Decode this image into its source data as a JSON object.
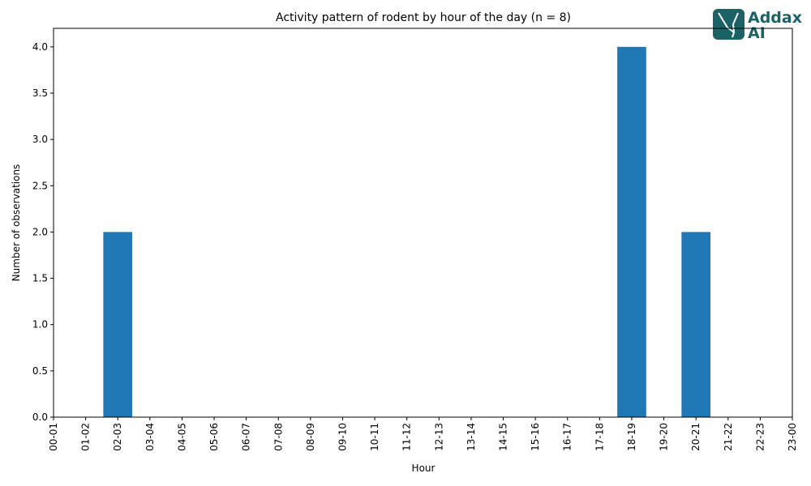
{
  "logo": {
    "line1": "Addax",
    "line2": "AI"
  },
  "chart_data": {
    "type": "bar",
    "title": "Activity pattern of rodent by hour of the day (n = 8)",
    "xlabel": "Hour",
    "ylabel": "Number of observations",
    "categories": [
      "00-01",
      "01-02",
      "02-03",
      "03-04",
      "04-05",
      "05-06",
      "06-07",
      "07-08",
      "08-09",
      "09-10",
      "10-11",
      "11-12",
      "12-13",
      "13-14",
      "14-15",
      "15-16",
      "16-17",
      "17-18",
      "18-19",
      "19-20",
      "20-21",
      "21-22",
      "22-23",
      "23-00"
    ],
    "values": [
      0,
      0,
      2,
      0,
      0,
      0,
      0,
      0,
      0,
      0,
      0,
      0,
      0,
      0,
      0,
      0,
      0,
      0,
      4,
      0,
      2,
      0,
      0,
      0
    ],
    "color": "#1f77b4",
    "ylim": [
      0,
      4.2
    ],
    "yticks": [
      {
        "value": 0,
        "label": "0.0"
      },
      {
        "value": 0.5,
        "label": "0.5"
      },
      {
        "value": 1,
        "label": "1.0"
      },
      {
        "value": 1.5,
        "label": "1.5"
      },
      {
        "value": 2,
        "label": "2.0"
      },
      {
        "value": 2.5,
        "label": "2.5"
      },
      {
        "value": 3,
        "label": "3.0"
      },
      {
        "value": 3.5,
        "label": "3.5"
      },
      {
        "value": 4,
        "label": "4.0"
      }
    ],
    "grid": false
  }
}
